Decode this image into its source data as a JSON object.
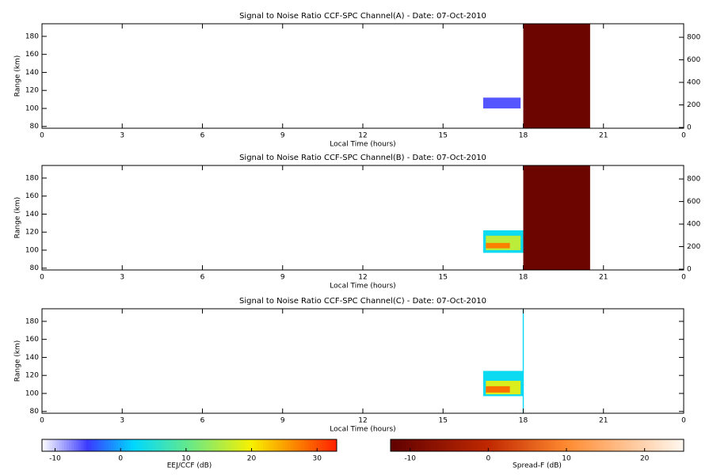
{
  "chart_data": [
    {
      "type": "heatmap",
      "title": "Signal to Noise Ratio CCF-SPC Channel(A) - Date: 07-Oct-2010",
      "xlabel": "Local Time (hours)",
      "ylabel": "Range (km)",
      "xlim": [
        0,
        24
      ],
      "xticks": [
        0,
        3,
        6,
        9,
        12,
        15,
        18,
        21,
        {
          "value": 24,
          "label": "0"
        }
      ],
      "ylim": [
        78,
        194
      ],
      "yticks": [
        80,
        100,
        120,
        140,
        160,
        180
      ],
      "y2lim": [
        -7,
        920
      ],
      "y2ticks": [
        0,
        200,
        400,
        600,
        800
      ],
      "eej_echoes": [
        {
          "t": [
            16.5,
            17.9
          ],
          "range": [
            100,
            112
          ],
          "snr": -6
        }
      ],
      "spread_f_echoes": [
        {
          "t": [
            18.0,
            20.5
          ],
          "range": [
            78,
            194
          ],
          "snr": -11
        }
      ]
    },
    {
      "type": "heatmap",
      "title": "Signal to Noise Ratio CCF-SPC Channel(B) - Date: 07-Oct-2010",
      "xlabel": "Local Time (hours)",
      "ylabel": "Range (km)",
      "xlim": [
        0,
        24
      ],
      "xticks": [
        0,
        3,
        6,
        9,
        12,
        15,
        18,
        21,
        {
          "value": 24,
          "label": "0"
        }
      ],
      "ylim": [
        78,
        194
      ],
      "yticks": [
        80,
        100,
        120,
        140,
        160,
        180
      ],
      "y2lim": [
        -7,
        920
      ],
      "y2ticks": [
        0,
        200,
        400,
        600,
        800
      ],
      "eej_echoes": [
        {
          "t": [
            16.5,
            18.0
          ],
          "range": [
            97,
            122
          ],
          "snr": 3
        },
        {
          "t": [
            16.6,
            17.9
          ],
          "range": [
            100,
            116
          ],
          "snr": 16
        },
        {
          "t": [
            16.6,
            17.5
          ],
          "range": [
            102,
            108
          ],
          "snr": 27
        }
      ],
      "spread_f_echoes": [
        {
          "t": [
            18.0,
            20.5
          ],
          "range": [
            78,
            194
          ],
          "snr": -11
        }
      ]
    },
    {
      "type": "heatmap",
      "title": "Signal to Noise Ratio CCF-SPC Channel(C) - Date: 07-Oct-2010",
      "xlabel": "Local Time (hours)",
      "ylabel": "Range (km)",
      "xlim": [
        0,
        24
      ],
      "xticks": [
        0,
        3,
        6,
        9,
        12,
        15,
        18,
        21,
        {
          "value": 24,
          "label": "0"
        }
      ],
      "ylim": [
        78,
        194
      ],
      "yticks": [
        80,
        100,
        120,
        140,
        160,
        180
      ],
      "eej_echoes": [
        {
          "t": [
            16.5,
            18.0
          ],
          "range": [
            97,
            125
          ],
          "snr": 3
        },
        {
          "t": [
            16.6,
            17.9
          ],
          "range": [
            99,
            114
          ],
          "snr": 18
        },
        {
          "t": [
            16.6,
            17.5
          ],
          "range": [
            101,
            108
          ],
          "snr": 28
        },
        {
          "t": [
            17.98,
            18.02
          ],
          "range": [
            78,
            194
          ],
          "snr": 2
        }
      ],
      "spread_f_echoes": []
    },
    {
      "type": "colorbar",
      "label": "EEJ/CCF (dB)",
      "xlim": [
        -12,
        33
      ],
      "xticks": [
        -10,
        0,
        10,
        20,
        30
      ],
      "stops": [
        {
          "value": -12,
          "color": "#ffffff"
        },
        {
          "value": -5,
          "color": "#3a3aff"
        },
        {
          "value": 2,
          "color": "#00d8ff"
        },
        {
          "value": 10,
          "color": "#60e890"
        },
        {
          "value": 20,
          "color": "#f8f000"
        },
        {
          "value": 33,
          "color": "#ff2000"
        }
      ]
    },
    {
      "type": "colorbar",
      "label": "Spread-F (dB)",
      "xlim": [
        -12.5,
        25
      ],
      "xticks": [
        -10,
        0,
        10,
        20
      ],
      "stops": [
        {
          "value": -12.5,
          "color": "#600000"
        },
        {
          "value": 0,
          "color": "#c02800"
        },
        {
          "value": 10,
          "color": "#ff8a30"
        },
        {
          "value": 25,
          "color": "#fff8f0"
        }
      ]
    }
  ]
}
